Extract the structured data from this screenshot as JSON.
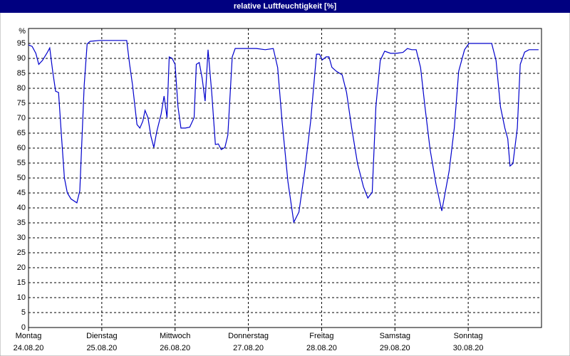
{
  "chart_data": {
    "type": "line",
    "title": "relative Luftfeuchtigkeit [%]",
    "ylabel": "%",
    "xlim": [
      0,
      7
    ],
    "ylim": [
      0,
      100
    ],
    "yticks": [
      0,
      5,
      10,
      15,
      20,
      25,
      30,
      35,
      40,
      45,
      50,
      55,
      60,
      65,
      70,
      75,
      80,
      85,
      90,
      95
    ],
    "xticks": [
      {
        "value": 0,
        "label": "Montag"
      },
      {
        "value": 1,
        "label": "Dienstag"
      },
      {
        "value": 2,
        "label": "Mittwoch"
      },
      {
        "value": 3,
        "label": "Donnerstag"
      },
      {
        "value": 4,
        "label": "Freitag"
      },
      {
        "value": 5,
        "label": "Samstag"
      },
      {
        "value": 6,
        "label": "Sonntag"
      }
    ],
    "xtick_dates": [
      "24.08.20",
      "25.08.20",
      "26.08.20",
      "27.08.20",
      "28.08.20",
      "29.08.20",
      "30.08.20"
    ],
    "grid": true,
    "series": [
      {
        "color": "#0000cc",
        "x": [
          0,
          0.05,
          0.1,
          0.14,
          0.19,
          0.25,
          0.29,
          0.33,
          0.37,
          0.41,
          0.45,
          0.49,
          0.53,
          0.58,
          0.66,
          0.7,
          0.76,
          0.8,
          0.84,
          0.97,
          1.34,
          1.38,
          1.42,
          1.48,
          1.52,
          1.56,
          1.59,
          1.63,
          1.67,
          1.71,
          1.75,
          1.81,
          1.85,
          1.89,
          1.92,
          1.96,
          2.0,
          2.04,
          2.08,
          2.14,
          2.2,
          2.26,
          2.29,
          2.33,
          2.37,
          2.41,
          2.45,
          2.5,
          2.55,
          2.59,
          2.63,
          2.68,
          2.72,
          2.78,
          2.82,
          3.11,
          3.23,
          3.34,
          3.4,
          3.46,
          3.54,
          3.62,
          3.69,
          3.77,
          3.85,
          3.93,
          3.97,
          4.01,
          4.06,
          4.1,
          4.14,
          4.2,
          4.28,
          4.34,
          4.41,
          4.49,
          4.57,
          4.63,
          4.69,
          4.74,
          4.8,
          4.86,
          4.94,
          5.02,
          5.11,
          5.17,
          5.23,
          5.29,
          5.35,
          5.41,
          5.48,
          5.56,
          5.64,
          5.74,
          5.81,
          5.87,
          5.95,
          6.01,
          6.32,
          6.38,
          6.44,
          6.5,
          6.54,
          6.57,
          6.61,
          6.67,
          6.71,
          6.77,
          6.83,
          6.96
        ],
        "values": [
          94.5,
          94,
          91.7,
          88,
          89.3,
          91.7,
          93.5,
          85.7,
          79,
          78.6,
          64,
          50,
          45,
          43,
          41.7,
          45.7,
          81,
          94.8,
          95.7,
          96,
          96,
          88,
          81,
          67.9,
          66.7,
          69,
          72.6,
          70.2,
          64,
          60.2,
          65.5,
          71.4,
          77.4,
          70.2,
          90.5,
          90,
          88,
          73.8,
          66.7,
          66.7,
          67,
          70.2,
          88,
          88.6,
          83.3,
          75.7,
          92.9,
          78.6,
          61.2,
          61.4,
          59.5,
          60.2,
          64.3,
          90.5,
          93.3,
          93.3,
          92.9,
          93.3,
          86.9,
          69,
          48.8,
          35.2,
          38.6,
          52.4,
          69,
          91.4,
          91.4,
          89.5,
          90.5,
          90.5,
          87,
          85.7,
          84.5,
          78.6,
          66.7,
          54.8,
          47.1,
          43.3,
          45.2,
          73.8,
          89.3,
          92.4,
          91.7,
          91.7,
          92,
          93.3,
          92.9,
          92.9,
          86.9,
          73.8,
          59.5,
          48,
          39,
          52.4,
          66.7,
          85.7,
          92.9,
          95,
          95,
          89.3,
          73.8,
          66.7,
          63.1,
          54,
          54.8,
          66.7,
          88,
          92.1,
          92.9,
          92.9
        ]
      }
    ]
  }
}
